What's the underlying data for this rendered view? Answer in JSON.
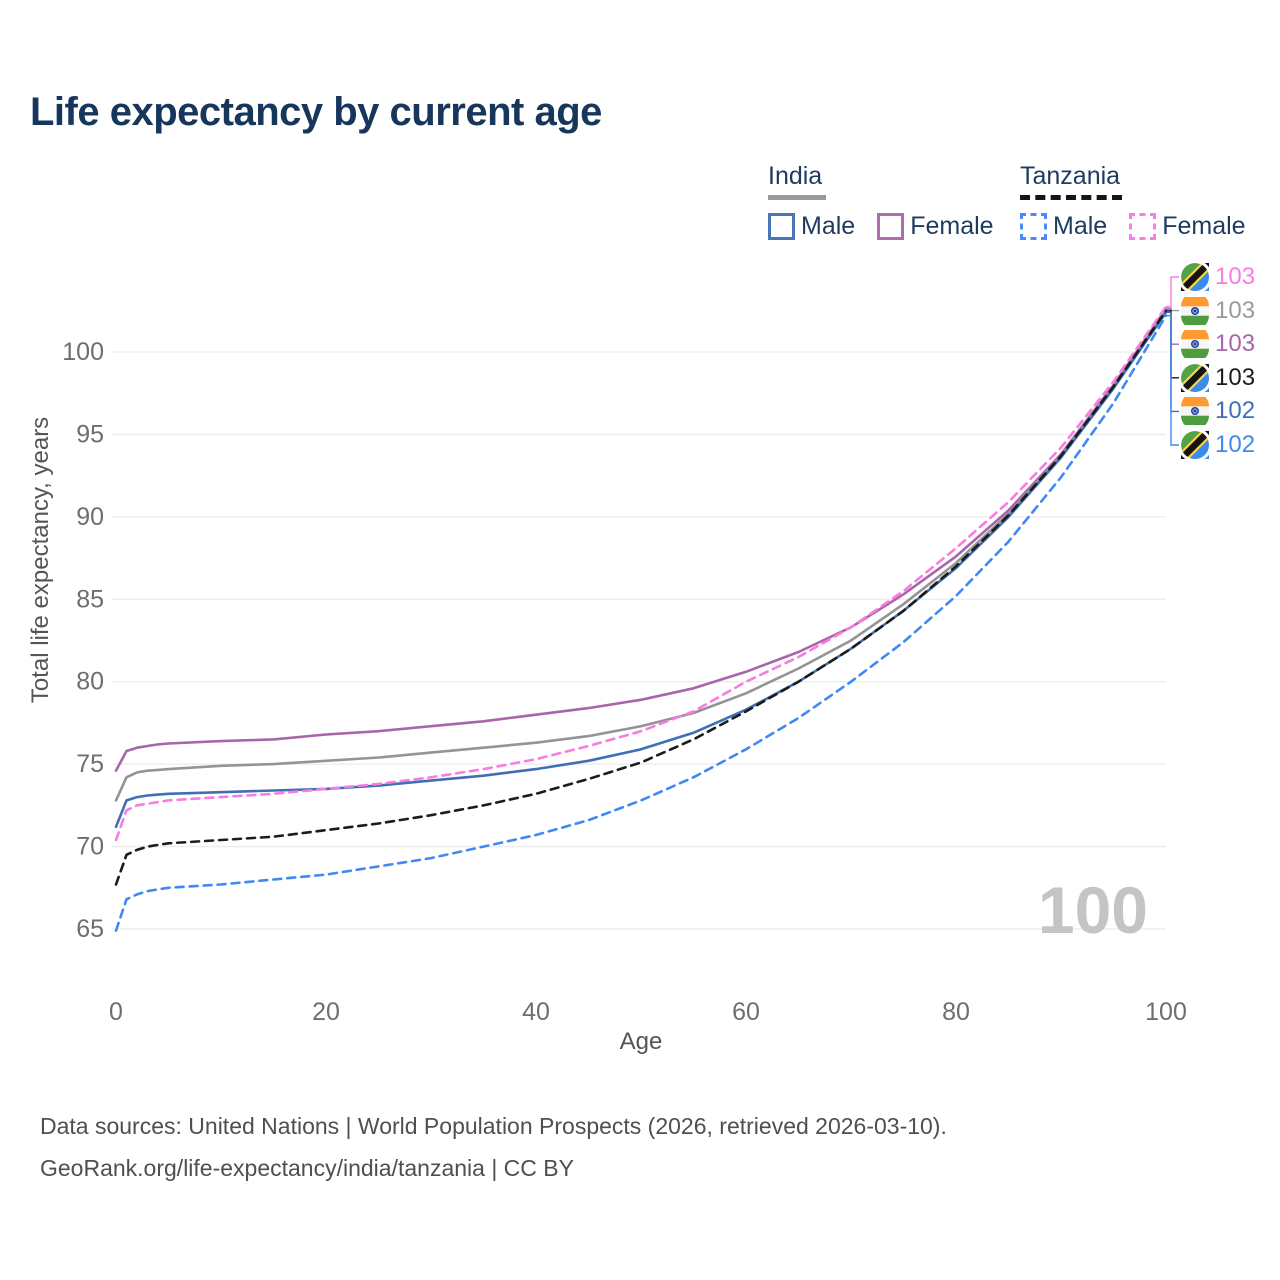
{
  "title": "Life expectancy by current age",
  "legend": {
    "groups": [
      {
        "name": "India",
        "line_style": "solid",
        "underline_color": "#9a9a9a",
        "items": [
          {
            "label": "Male",
            "color": "#4a76b8"
          },
          {
            "label": "Female",
            "color": "#ad6cad"
          }
        ]
      },
      {
        "name": "Tanzania",
        "line_style": "dashed",
        "underline_color": "#161616",
        "items": [
          {
            "label": "Male",
            "color": "#4a8cf7"
          },
          {
            "label": "Female",
            "color": "#fb7be7"
          }
        ]
      }
    ]
  },
  "watermark_age": "100",
  "end_labels": [
    {
      "flag": "tanzania",
      "value": "103",
      "color": "#f97ce1",
      "series_index": 3
    },
    {
      "flag": "india",
      "value": "103",
      "color": "#9a9a9a",
      "series_index": 1
    },
    {
      "flag": "india",
      "value": "103",
      "color": "#a965a9",
      "series_index": 0
    },
    {
      "flag": "tanzania",
      "value": "103",
      "color": "#1c1c1c",
      "series_index": 4
    },
    {
      "flag": "india",
      "value": "102",
      "color": "#3f6fb5",
      "series_index": 2
    },
    {
      "flag": "tanzania",
      "value": "102",
      "color": "#4189f2",
      "series_index": 5
    }
  ],
  "footer": {
    "line1": "Data sources: United Nations | World Population Prospects (2026, retrieved 2026-03-10).",
    "line2": "GeoRank.org/life-expectancy/india/tanzania | CC BY"
  },
  "chart_data": {
    "type": "line",
    "title": "Life expectancy by current age",
    "xlabel": "Age",
    "ylabel": "Total life expectancy, years",
    "xlim": [
      0,
      100
    ],
    "ylim": [
      63,
      104
    ],
    "xticks": [
      0,
      20,
      40,
      60,
      80,
      100
    ],
    "yticks": [
      65,
      70,
      75,
      80,
      85,
      90,
      95,
      100
    ],
    "grid": "horizontal-only",
    "legend_position": "top-right",
    "x": [
      0,
      1,
      2,
      3,
      4,
      5,
      10,
      15,
      20,
      25,
      30,
      35,
      40,
      45,
      50,
      55,
      60,
      65,
      70,
      75,
      80,
      85,
      90,
      95,
      100
    ],
    "series": [
      {
        "name": "India Female",
        "country": "india",
        "sex": "female",
        "dash": "solid",
        "color": "#a965a9",
        "values": [
          74.6,
          75.8,
          76.0,
          76.1,
          76.2,
          76.25,
          76.4,
          76.5,
          76.8,
          77.0,
          77.3,
          77.6,
          78.0,
          78.4,
          78.9,
          79.6,
          80.6,
          81.8,
          83.3,
          85.3,
          87.6,
          90.4,
          93.8,
          98.0,
          102.6
        ],
        "end_label": "103"
      },
      {
        "name": "India Both sexes",
        "country": "india",
        "sex": "all",
        "dash": "solid",
        "color": "#949494",
        "values": [
          72.8,
          74.2,
          74.5,
          74.6,
          74.65,
          74.7,
          74.9,
          75.0,
          75.2,
          75.4,
          75.7,
          76.0,
          76.3,
          76.7,
          77.3,
          78.1,
          79.3,
          80.8,
          82.5,
          84.7,
          87.2,
          90.2,
          93.7,
          97.9,
          102.65
        ],
        "end_label": "103"
      },
      {
        "name": "India Male",
        "country": "india",
        "sex": "male",
        "dash": "solid",
        "color": "#3f6fb5",
        "values": [
          71.2,
          72.8,
          73.0,
          73.1,
          73.15,
          73.2,
          73.3,
          73.4,
          73.5,
          73.7,
          74.0,
          74.3,
          74.7,
          75.2,
          75.9,
          76.9,
          78.3,
          80.0,
          82.0,
          84.3,
          86.9,
          90.0,
          93.6,
          97.8,
          102.4
        ],
        "end_label": "102"
      },
      {
        "name": "Tanzania Female",
        "country": "tanzania",
        "sex": "female",
        "dash": "dashed",
        "color": "#f97ce1",
        "values": [
          70.4,
          72.2,
          72.5,
          72.6,
          72.7,
          72.8,
          73.0,
          73.2,
          73.5,
          73.8,
          74.2,
          74.7,
          75.3,
          76.1,
          77.0,
          78.2,
          80.0,
          81.5,
          83.3,
          85.5,
          88.1,
          90.9,
          94.2,
          98.2,
          102.75
        ],
        "end_label": "103"
      },
      {
        "name": "Tanzania Both sexes",
        "country": "tanzania",
        "sex": "all",
        "dash": "dashed",
        "color": "#1c1c1c",
        "values": [
          67.7,
          69.5,
          69.8,
          70.0,
          70.1,
          70.2,
          70.4,
          70.6,
          71.0,
          71.4,
          71.9,
          72.5,
          73.2,
          74.1,
          75.1,
          76.5,
          78.2,
          80.0,
          82.0,
          84.3,
          87.0,
          90.1,
          93.7,
          97.9,
          102.5
        ],
        "end_label": "103"
      },
      {
        "name": "Tanzania Male",
        "country": "tanzania",
        "sex": "male",
        "dash": "dashed",
        "color": "#4189f2",
        "values": [
          64.9,
          66.8,
          67.1,
          67.3,
          67.4,
          67.5,
          67.7,
          68.0,
          68.3,
          68.8,
          69.3,
          70.0,
          70.7,
          71.6,
          72.8,
          74.2,
          75.9,
          77.8,
          80.0,
          82.4,
          85.2,
          88.5,
          92.4,
          96.9,
          102.2
        ],
        "end_label": "102"
      }
    ]
  }
}
